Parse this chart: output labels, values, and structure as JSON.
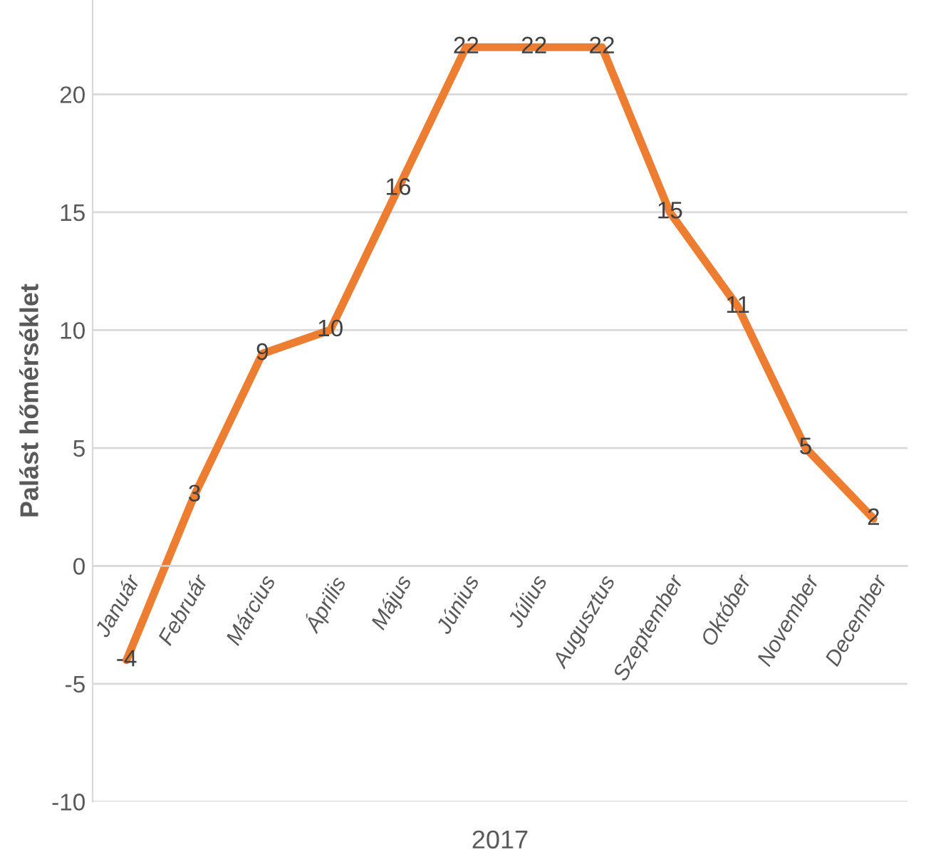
{
  "chart_data": {
    "type": "line",
    "xlabel": "2017",
    "ylabel": "Palást hőmérséklet",
    "categories": [
      "Január",
      "Február",
      "Március",
      "Április",
      "Május",
      "Június",
      "Július",
      "Augusztus",
      "Szeptember",
      "Október",
      "November",
      "December"
    ],
    "series": [
      {
        "color": "#ed7d31",
        "values": [
          -4,
          3,
          9,
          10,
          16,
          22,
          22,
          22,
          15,
          11,
          5,
          2
        ]
      }
    ],
    "ylim": [
      -10,
      24
    ],
    "yticks": [
      -10,
      -5,
      0,
      5,
      10,
      15,
      20
    ],
    "grid": "y",
    "data_labels": true,
    "line_style": "solid",
    "legend": false
  }
}
